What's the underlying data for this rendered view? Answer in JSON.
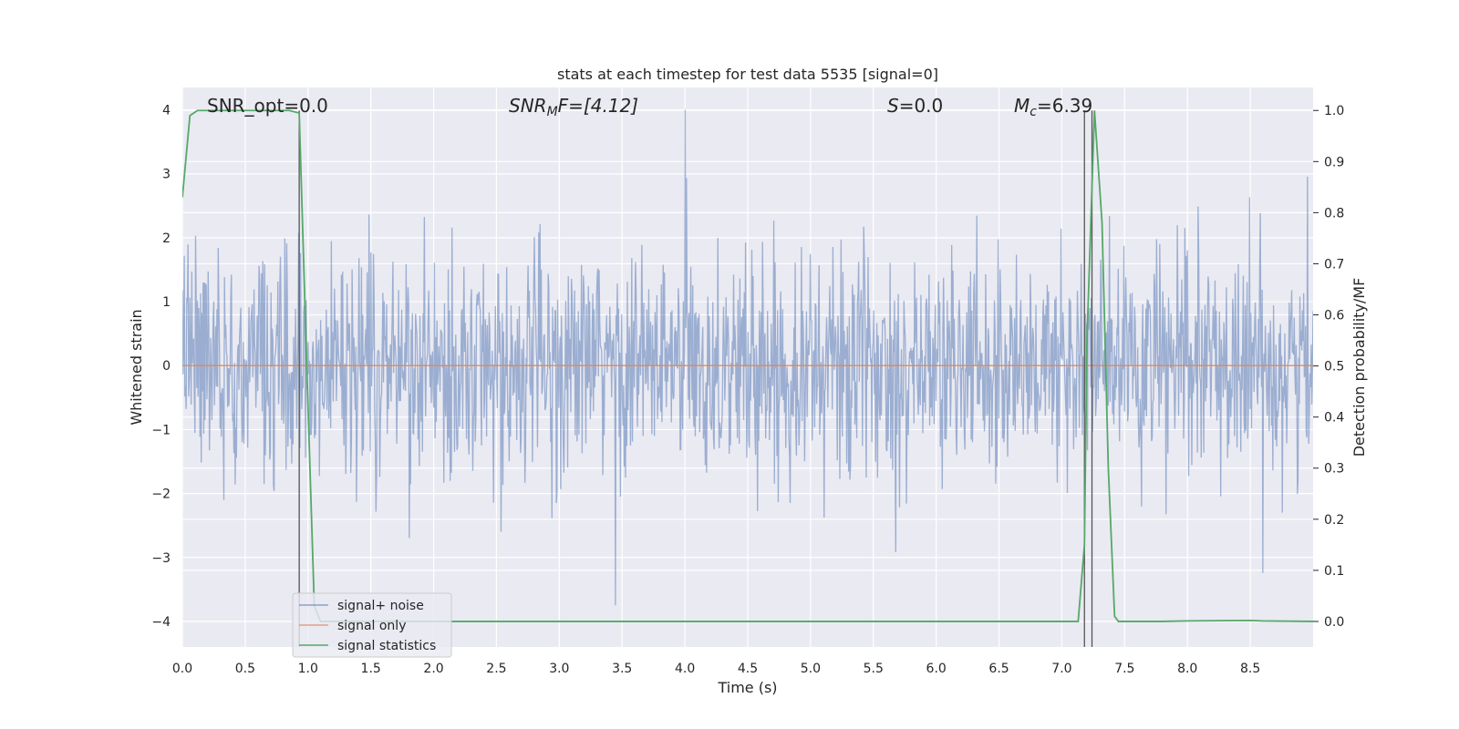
{
  "chart_data": {
    "type": "line",
    "title": "stats at each timestep for test data 5535 [signal=0]",
    "xlabel": "Time (s)",
    "ylabel": "Whitened strain",
    "y2label": "Detection probability/MF",
    "xlim": [
      0,
      9.0
    ],
    "ylim": [
      -4.4,
      4.35
    ],
    "y2lim": [
      -0.05,
      1.045
    ],
    "grid": true,
    "legend_position": "lower-left",
    "x_ticks": [
      "0.0",
      "0.5",
      "1.0",
      "1.5",
      "2.0",
      "2.5",
      "3.0",
      "3.5",
      "4.0",
      "4.5",
      "5.0",
      "5.5",
      "6.0",
      "6.5",
      "7.0",
      "7.5",
      "8.0",
      "8.5"
    ],
    "y_ticks": [
      "−4",
      "−3",
      "−2",
      "−1",
      "0",
      "1",
      "2",
      "3",
      "4"
    ],
    "y2_ticks": [
      "0.0",
      "0.1",
      "0.2",
      "0.3",
      "0.4",
      "0.5",
      "0.6",
      "0.7",
      "0.8",
      "0.9",
      "1.0"
    ],
    "annotations": {
      "snr_opt": "SNR_opt=0.0",
      "snr_mf_prefix": "SNR",
      "snr_mf_sub": "M",
      "snr_mf_suffix": "F=[4.12]",
      "s_prefix": "S",
      "s_suffix": "=0.0",
      "mc_prefix": "M",
      "mc_sub": "c",
      "mc_suffix": "=6.39"
    },
    "vertical_lines_x": [
      0.93,
      7.18,
      7.24
    ],
    "series": [
      {
        "name": "signal+ noise",
        "color": "#4c72b0",
        "opacity": 0.5,
        "description": "whitened noise, amplitude mostly within ±2.3, peaks near ±3.9",
        "typical_abs_max": 2.3,
        "peak_y": [
          4.0,
          -3.75
        ]
      },
      {
        "name": "signal only",
        "color": "#dd8452",
        "x": [
          0,
          9.0
        ],
        "y": [
          0,
          0
        ]
      },
      {
        "name": "signal statistics",
        "color": "#55a868",
        "axis": "right",
        "x": [
          0.0,
          0.06,
          0.12,
          0.2,
          0.3,
          0.5,
          0.7,
          0.85,
          0.93,
          0.99,
          1.05,
          1.1,
          2.0,
          3.0,
          4.0,
          5.0,
          6.0,
          7.0,
          7.13,
          7.18,
          7.2,
          7.26,
          7.32,
          7.37,
          7.42,
          7.45,
          7.8,
          8.0,
          8.5,
          8.6,
          9.0
        ],
        "y": [
          0.83,
          0.99,
          1.0,
          1.0,
          1.0,
          1.0,
          1.0,
          1.0,
          0.995,
          0.5,
          0.03,
          0.0,
          0.0,
          0.0,
          0.0,
          0.0,
          0.0,
          0.0,
          0.0,
          0.15,
          0.55,
          1.0,
          0.78,
          0.3,
          0.01,
          0.0,
          0.0,
          0.001,
          0.002,
          0.001,
          0.0
        ]
      }
    ]
  },
  "colors": {
    "axes_bg": "#eaeaf2",
    "grid": "#ffffff",
    "noise": "#4c72b0",
    "signal": "#dd8452",
    "stats": "#55a868",
    "vline": "#555555"
  }
}
